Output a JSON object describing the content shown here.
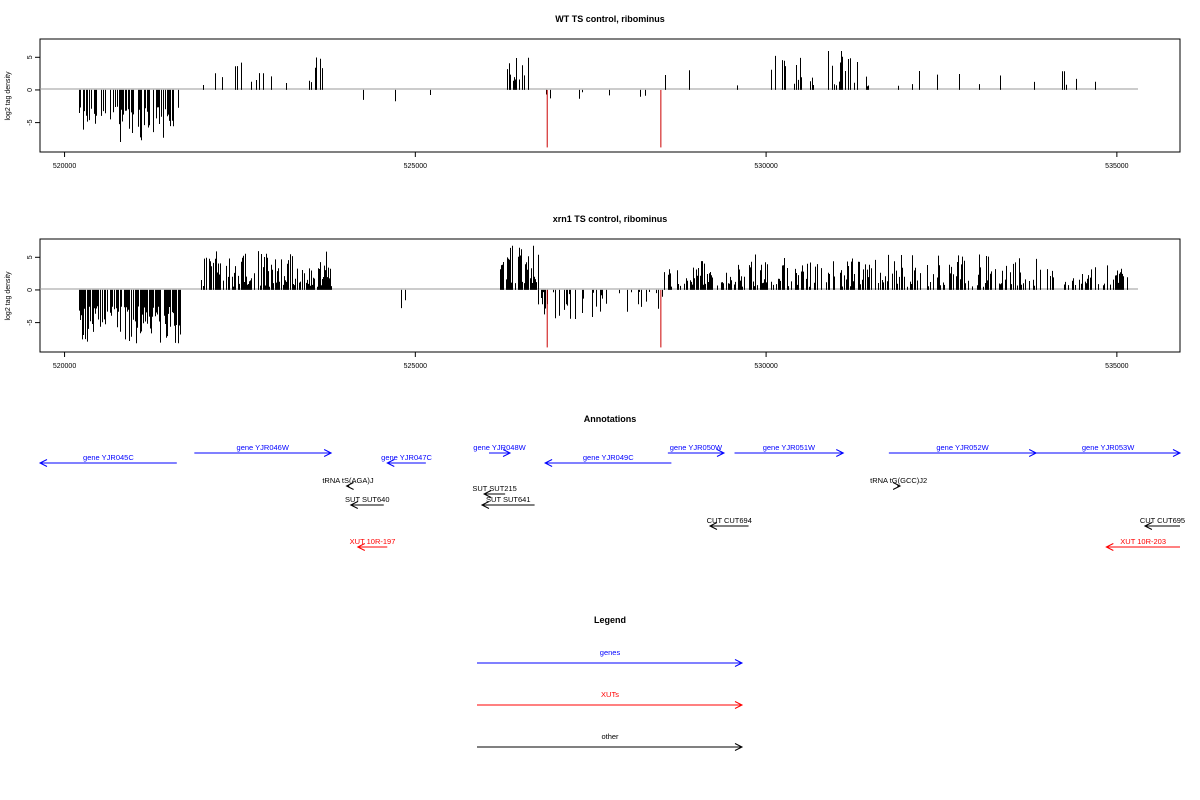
{
  "chart_data": [
    {
      "type": "bar",
      "title": "WT TS control, ribominus",
      "xlabel": "",
      "ylabel": "log2 tag density",
      "xlim": [
        519650,
        535900
      ],
      "ylim": [
        -9.5,
        7.8
      ],
      "xticks": [
        520000,
        525000,
        530000,
        535000
      ],
      "yticks": [
        -5,
        0,
        5
      ],
      "grid": false,
      "segments": [
        {
          "start": 520200,
          "end": 521650,
          "sign": -1,
          "min": 2.5,
          "max": 8.0,
          "density": 0.55,
          "seed": 11
        },
        {
          "start": 521950,
          "end": 523800,
          "sign": 1,
          "min": 0.5,
          "max": 5.0,
          "density": 0.17,
          "seed": 12
        },
        {
          "start": 523900,
          "end": 525350,
          "sign": -1,
          "min": 0.3,
          "max": 2.0,
          "density": 0.012,
          "seed": 13
        },
        {
          "start": 526300,
          "end": 526650,
          "sign": 1,
          "min": 1.0,
          "max": 5.8,
          "density": 0.4,
          "seed": 14
        },
        {
          "start": 526700,
          "end": 528400,
          "sign": -1,
          "min": 0.3,
          "max": 2.5,
          "density": 0.07,
          "seed": 15
        },
        {
          "start": 528500,
          "end": 529600,
          "sign": 1,
          "min": 0.3,
          "max": 4.3,
          "density": 0.05,
          "seed": 16
        },
        {
          "start": 529950,
          "end": 531500,
          "sign": 1,
          "min": 0.5,
          "max": 6.0,
          "density": 0.2,
          "seed": 17
        },
        {
          "start": 531700,
          "end": 533900,
          "sign": 1,
          "min": 0.5,
          "max": 3.0,
          "density": 0.04,
          "seed": 18
        },
        {
          "start": 534200,
          "end": 535150,
          "sign": 1,
          "min": 0.5,
          "max": 3.5,
          "density": 0.06,
          "seed": 19
        }
      ],
      "highlights": [
        {
          "x": 526880,
          "value": -8.8,
          "color": "#cc0000"
        },
        {
          "x": 528500,
          "value": -8.8,
          "color": "#cc0000"
        }
      ]
    },
    {
      "type": "bar",
      "title": "xrn1 TS control, ribominus",
      "xlabel": "",
      "ylabel": "log2 tag density",
      "xlim": [
        519650,
        535900
      ],
      "ylim": [
        -9.5,
        7.8
      ],
      "xticks": [
        520000,
        525000,
        530000,
        535000
      ],
      "yticks": [
        -5,
        0,
        5
      ],
      "grid": false,
      "segments": [
        {
          "start": 520200,
          "end": 521650,
          "sign": -1,
          "min": 2.5,
          "max": 8.5,
          "density": 0.7,
          "seed": 21
        },
        {
          "start": 521950,
          "end": 523800,
          "sign": 1,
          "min": 0.5,
          "max": 6.0,
          "density": 0.7,
          "seed": 22
        },
        {
          "start": 523900,
          "end": 525500,
          "sign": -1,
          "min": 0.3,
          "max": 3.0,
          "density": 0.03,
          "seed": 23
        },
        {
          "start": 526200,
          "end": 526750,
          "sign": 1,
          "min": 1.0,
          "max": 7.0,
          "density": 0.7,
          "seed": 24
        },
        {
          "start": 526750,
          "end": 528550,
          "sign": -1,
          "min": 0.3,
          "max": 4.5,
          "density": 0.35,
          "seed": 25
        },
        {
          "start": 528550,
          "end": 529700,
          "sign": 1,
          "min": 0.5,
          "max": 4.5,
          "density": 0.55,
          "seed": 26
        },
        {
          "start": 529750,
          "end": 533900,
          "sign": 1,
          "min": 0.5,
          "max": 5.5,
          "density": 0.5,
          "seed": 27
        },
        {
          "start": 534000,
          "end": 535150,
          "sign": 1,
          "min": 0.5,
          "max": 4.0,
          "density": 0.35,
          "seed": 28
        }
      ],
      "highlights": [
        {
          "x": 526880,
          "value": -8.8,
          "color": "#cc0000"
        },
        {
          "x": 528500,
          "value": -8.8,
          "color": "#cc0000"
        }
      ]
    }
  ],
  "annotations": {
    "title": "Annotations",
    "features": [
      {
        "label": "gene YJR045C",
        "start": 519650,
        "end": 521600,
        "row": 1,
        "strand": "-",
        "kind": "gene"
      },
      {
        "label": "gene YJR046W",
        "start": 521850,
        "end": 523800,
        "row": 0,
        "strand": "+",
        "kind": "gene"
      },
      {
        "label": "gene YJR047C",
        "start": 524600,
        "end": 525150,
        "row": 1,
        "strand": "-",
        "kind": "gene"
      },
      {
        "label": "gene YJR048W",
        "start": 526050,
        "end": 526350,
        "row": 0,
        "strand": "+",
        "kind": "gene"
      },
      {
        "label": "gene YJR049C",
        "start": 526850,
        "end": 528650,
        "row": 1,
        "strand": "-",
        "kind": "gene"
      },
      {
        "label": "gene YJR050W",
        "start": 528600,
        "end": 529400,
        "row": 0,
        "strand": "+",
        "kind": "gene"
      },
      {
        "label": "gene YJR051W",
        "start": 529550,
        "end": 531100,
        "row": 0,
        "strand": "+",
        "kind": "gene"
      },
      {
        "label": "gene YJR052W",
        "start": 531750,
        "end": 533850,
        "row": 0,
        "strand": "+",
        "kind": "gene"
      },
      {
        "label": "gene YJR053W",
        "start": 533850,
        "end": 535900,
        "row": 0,
        "strand": "+",
        "kind": "gene"
      },
      {
        "label": "tRNA tS(AGA)J",
        "start": 524020,
        "end": 524060,
        "row": 2,
        "strand": "-",
        "kind": "other"
      },
      {
        "label": "tRNA tG(GCC)J2",
        "start": 531870,
        "end": 531910,
        "row": 2,
        "strand": "+",
        "kind": "other"
      },
      {
        "label": "SUT SUT215",
        "start": 525980,
        "end": 526280,
        "row": 3,
        "strand": "-",
        "kind": "other"
      },
      {
        "label": "SUT SUT640",
        "start": 524080,
        "end": 524550,
        "row": 4,
        "strand": "-",
        "kind": "other"
      },
      {
        "label": "SUT SUT641",
        "start": 525950,
        "end": 526700,
        "row": 4,
        "strand": "-",
        "kind": "other"
      },
      {
        "label": "CUT CUT694",
        "start": 529200,
        "end": 529750,
        "row": 5,
        "strand": "-",
        "kind": "other"
      },
      {
        "label": "CUT CUT695",
        "start": 535400,
        "end": 535900,
        "row": 5,
        "strand": "-",
        "kind": "other"
      },
      {
        "label": "XUT 10R-197",
        "start": 524180,
        "end": 524600,
        "row": 6,
        "strand": "-",
        "kind": "xut"
      },
      {
        "label": "XUT 10R-203",
        "start": 534850,
        "end": 535900,
        "row": 6,
        "strand": "-",
        "kind": "xut"
      }
    ]
  },
  "legend": {
    "title": "Legend",
    "entries": [
      {
        "label": "genes",
        "color": "#0000ff"
      },
      {
        "label": "XUTs",
        "color": "#ff0000"
      },
      {
        "label": "other",
        "color": "#000000"
      }
    ]
  },
  "colors": {
    "gene": "#0000ff",
    "xut": "#ff0000",
    "other": "#000000",
    "bar": "#000000",
    "baseline": "#9a9a9a"
  }
}
